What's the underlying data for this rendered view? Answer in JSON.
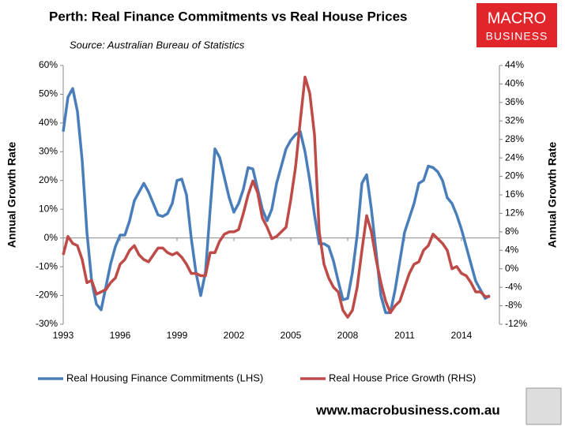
{
  "chart_data": {
    "type": "line",
    "title": "Perth: Real Finance Commitments vs Real House Prices",
    "subtitle": "Source: Australian Bureau of Statistics",
    "ylabel": "Annual Growth Rate",
    "y2label": "Annual Growth Rate",
    "logo": [
      "MACRO",
      "BUSINESS"
    ],
    "website": "www.macrobusiness.com.au",
    "x": [
      1993,
      1993.25,
      1993.5,
      1993.75,
      1994,
      1994.25,
      1994.5,
      1994.75,
      1995,
      1995.25,
      1995.5,
      1995.75,
      1996,
      1996.25,
      1996.5,
      1996.75,
      1997,
      1997.25,
      1997.5,
      1997.75,
      1998,
      1998.25,
      1998.5,
      1998.75,
      1999,
      1999.25,
      1999.5,
      1999.75,
      2000,
      2000.25,
      2000.5,
      2000.75,
      2001,
      2001.25,
      2001.5,
      2001.75,
      2002,
      2002.25,
      2002.5,
      2002.75,
      2003,
      2003.25,
      2003.5,
      2003.75,
      2004,
      2004.25,
      2004.5,
      2004.75,
      2005,
      2005.25,
      2005.5,
      2005.75,
      2006,
      2006.25,
      2006.5,
      2006.75,
      2007,
      2007.25,
      2007.5,
      2007.75,
      2008,
      2008.25,
      2008.5,
      2008.75,
      2009,
      2009.25,
      2009.5,
      2009.75,
      2010,
      2010.25,
      2010.5,
      2010.75,
      2011,
      2011.25,
      2011.5,
      2011.75,
      2012,
      2012.25,
      2012.5,
      2012.75,
      2013,
      2013.25,
      2013.5,
      2013.75,
      2014,
      2014.25,
      2014.5,
      2014.75,
      2015,
      2015.25,
      2015.5
    ],
    "xlim": [
      1993,
      2016
    ],
    "xticks": [
      1993,
      1996,
      1999,
      2002,
      2005,
      2008,
      2011,
      2014
    ],
    "ylim": [
      -30,
      60
    ],
    "yticks": [
      {
        "value": -30,
        "label": "-30%"
      },
      {
        "value": -20,
        "label": "-20%"
      },
      {
        "value": -10,
        "label": "-10%"
      },
      {
        "value": 0,
        "label": "0%"
      },
      {
        "value": 10,
        "label": "10%"
      },
      {
        "value": 20,
        "label": "20%"
      },
      {
        "value": 30,
        "label": "30%"
      },
      {
        "value": 40,
        "label": "40%"
      },
      {
        "value": 50,
        "label": "50%"
      },
      {
        "value": 60,
        "label": "60%"
      }
    ],
    "y2lim": [
      -12,
      44
    ],
    "y2ticks": [
      {
        "value": -12,
        "label": "-12%"
      },
      {
        "value": -8,
        "label": "-8%"
      },
      {
        "value": -4,
        "label": "-4%"
      },
      {
        "value": 0,
        "label": "0%"
      },
      {
        "value": 4,
        "label": "4%"
      },
      {
        "value": 8,
        "label": "8%"
      },
      {
        "value": 12,
        "label": "12%"
      },
      {
        "value": 16,
        "label": "16%"
      },
      {
        "value": 20,
        "label": "20%"
      },
      {
        "value": 24,
        "label": "24%"
      },
      {
        "value": 28,
        "label": "28%"
      },
      {
        "value": 32,
        "label": "32%"
      },
      {
        "value": 36,
        "label": "36%"
      },
      {
        "value": 40,
        "label": "40%"
      },
      {
        "value": 44,
        "label": "44%"
      }
    ],
    "series": [
      {
        "name": "Real Housing Finance Commitments (LHS)",
        "color": "#4a7ebb",
        "axis": "y",
        "values": [
          37,
          49,
          52,
          44,
          27,
          2,
          -15,
          -23,
          -25,
          -17,
          -9,
          -3,
          1,
          1,
          6,
          13,
          16,
          19,
          16,
          12,
          8,
          7.5,
          8.5,
          12,
          20,
          20.5,
          15,
          0,
          -12,
          -20,
          -12,
          10,
          31,
          28,
          21,
          14,
          9,
          12,
          17,
          24.5,
          24,
          17,
          10,
          6,
          10,
          19,
          25,
          31,
          34,
          36,
          37,
          30,
          20,
          8,
          -2,
          -2,
          -3,
          -8,
          -15,
          -21.5,
          -21,
          -12,
          1,
          19,
          22,
          10,
          -5,
          -20,
          -26,
          -26,
          -18,
          -8,
          2,
          7,
          12,
          19,
          20,
          25,
          24.5,
          23,
          20,
          14,
          12,
          8,
          3,
          -3,
          -9,
          -15,
          -18,
          -21,
          -20
        ]
      },
      {
        "name": "Real House Price Growth (RHS)",
        "color": "#be4b48",
        "axis": "y2",
        "values": [
          3,
          7,
          5.5,
          5,
          2,
          -3,
          -2.5,
          -5.5,
          -5,
          -4.5,
          -3,
          -2,
          1,
          2,
          4,
          5,
          3,
          2,
          1.5,
          3,
          4.5,
          4.5,
          3.5,
          3,
          3.5,
          2.5,
          1,
          -1,
          -1,
          -1.5,
          -1.5,
          3.5,
          3.5,
          6,
          7.5,
          8,
          8,
          8.5,
          12,
          16,
          19,
          16.5,
          11,
          9,
          6.5,
          7,
          8,
          9,
          15,
          22,
          32,
          41.5,
          38,
          29,
          8,
          1,
          -2,
          -4,
          -5,
          -9,
          -10.5,
          -9,
          -4,
          4,
          11.5,
          8,
          2,
          -3,
          -7,
          -9.5,
          -8,
          -7,
          -4,
          -1,
          1,
          1.5,
          4,
          5,
          7.5,
          6.5,
          5.5,
          4,
          0,
          0.5,
          -1,
          -1.5,
          -3,
          -5,
          -5,
          -6,
          -6
        ]
      }
    ]
  }
}
